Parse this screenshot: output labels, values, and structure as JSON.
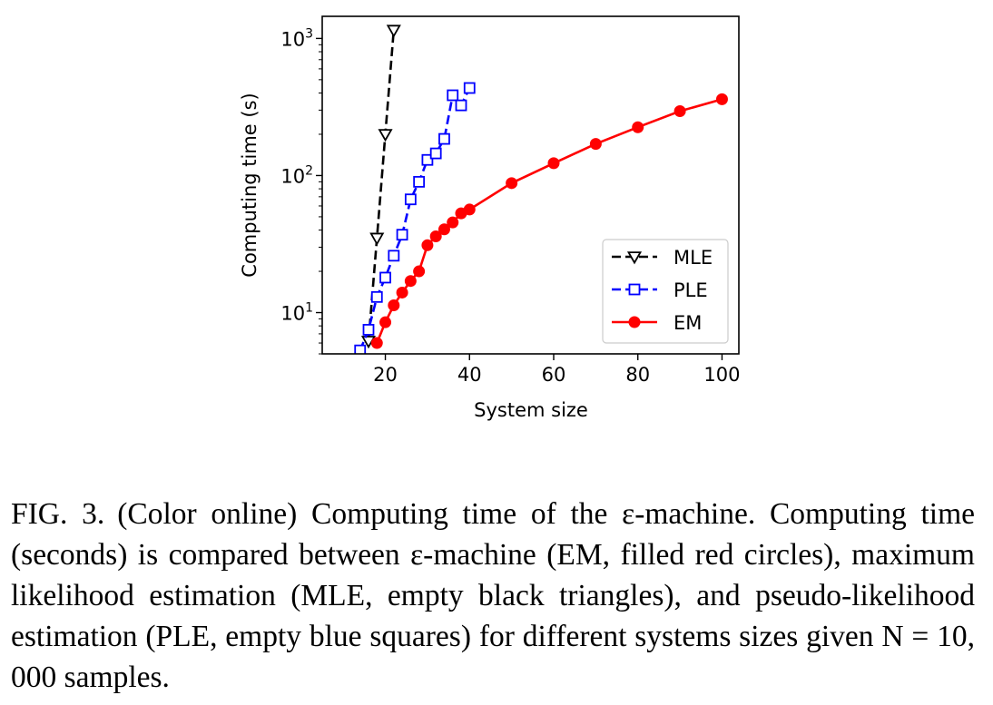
{
  "chart_data": {
    "type": "line",
    "xlabel": "System size",
    "ylabel": "Computing time (s)",
    "xlim": [
      5,
      104
    ],
    "ylim": [
      5,
      1450
    ],
    "yscale": "log",
    "x_ticks": [
      20,
      40,
      60,
      80,
      100
    ],
    "y_ticks": [
      {
        "value": 10,
        "base": "10",
        "exp": "1"
      },
      {
        "value": 100,
        "base": "10",
        "exp": "2"
      },
      {
        "value": 1000,
        "base": "10",
        "exp": "3"
      }
    ],
    "grid": false,
    "legend_position": "lower-right",
    "series": [
      {
        "name": "MLE",
        "color": "#000000",
        "dash": "dashed",
        "marker": "triangle-down-open",
        "x": [
          16,
          18,
          20,
          22
        ],
        "y": [
          6.2,
          35,
          200,
          1150
        ]
      },
      {
        "name": "PLE",
        "color": "#0000ff",
        "dash": "dashed",
        "marker": "square-open",
        "x": [
          14,
          16,
          18,
          20,
          22,
          24,
          26,
          28,
          30,
          32,
          34,
          36,
          38,
          40
        ],
        "y": [
          5.3,
          7.5,
          13,
          18,
          26,
          37,
          67,
          90,
          130,
          145,
          185,
          385,
          325,
          435
        ]
      },
      {
        "name": "EM",
        "color": "#ff0000",
        "dash": "solid",
        "marker": "circle-filled",
        "x": [
          18,
          20,
          22,
          24,
          26,
          28,
          30,
          32,
          34,
          36,
          38,
          40,
          50,
          60,
          70,
          80,
          90,
          100
        ],
        "y": [
          6,
          8.5,
          11.3,
          14,
          17,
          20,
          31,
          36,
          40.5,
          45.5,
          53,
          56.5,
          88,
          123,
          170,
          225,
          295,
          360
        ]
      }
    ]
  },
  "caption": {
    "label": "FIG. 3.",
    "text": "(Color online) Computing time of the ε-machine. Computing time (seconds) is compared between ε-machine (EM, filled red circles), maximum likelihood estimation (MLE, empty black triangles), and pseudo-likelihood estimation (PLE, empty blue squares) for different systems sizes given N = 10, 000 samples."
  }
}
